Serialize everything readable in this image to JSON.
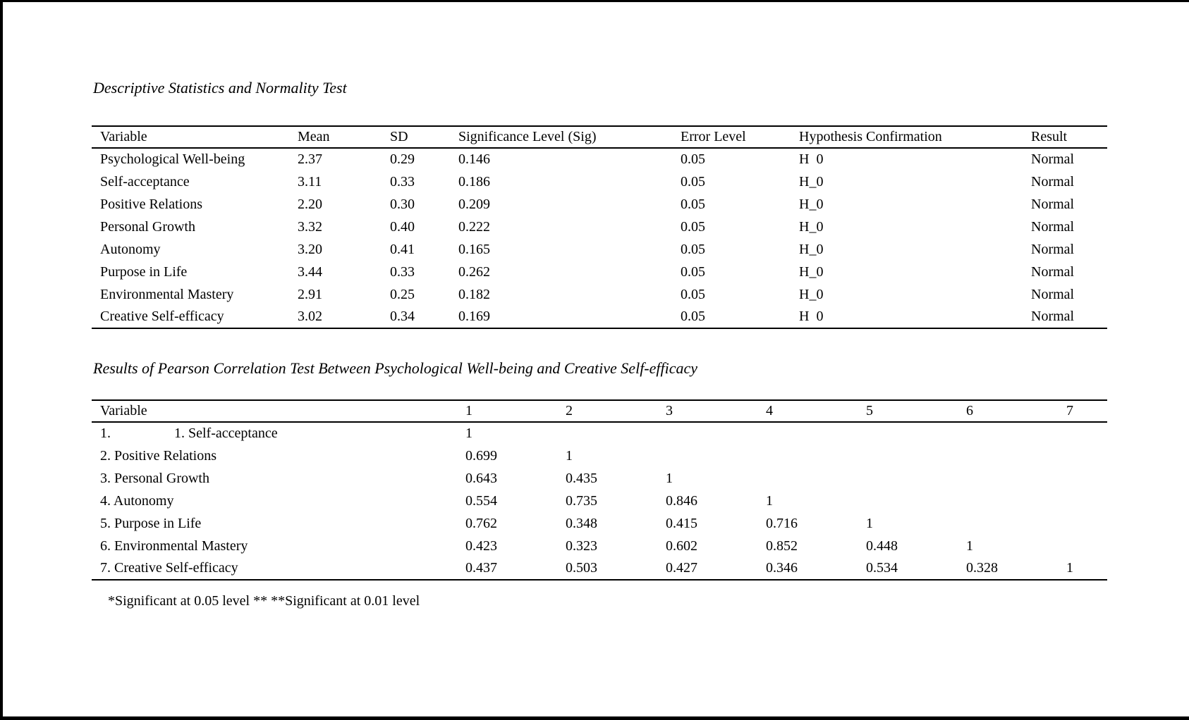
{
  "page": {
    "background": "#ffffff",
    "border_color": "#000000",
    "text_color": "#000000"
  },
  "section1": {
    "title": "Descriptive Statistics and Normality Test",
    "table": {
      "columns": [
        "Variable",
        "Mean",
        "SD",
        "Significance Level (Sig)",
        "Error Level",
        "Hypothesis Confirmation",
        "Result"
      ],
      "rows": [
        [
          "Psychological Well-being",
          "2.37",
          "0.29",
          "0.146",
          "0.05",
          "H  0",
          "Normal"
        ],
        [
          "Self-acceptance",
          "3.11",
          "0.33",
          "0.186",
          "0.05",
          "H_0",
          "Normal"
        ],
        [
          "Positive Relations",
          "2.20",
          "0.30",
          "0.209",
          "0.05",
          "H_0",
          "Normal"
        ],
        [
          "Personal Growth",
          "3.32",
          "0.40",
          "0.222",
          "0.05",
          "H_0",
          "Normal"
        ],
        [
          "Autonomy",
          "3.20",
          "0.41",
          "0.165",
          "0.05",
          "H_0",
          "Normal"
        ],
        [
          "Purpose in Life",
          "3.44",
          "0.33",
          "0.262",
          "0.05",
          "H_0",
          "Normal"
        ],
        [
          "Environmental Mastery",
          "2.91",
          "0.25",
          "0.182",
          "0.05",
          "H_0",
          "Normal"
        ],
        [
          "Creative Self-efficacy",
          "3.02",
          "0.34",
          "0.169",
          "0.05",
          "H  0",
          "Normal"
        ]
      ]
    }
  },
  "section2": {
    "title": "Results of Pearson Correlation Test Between Psychological Well-being and Creative Self-efficacy",
    "table": {
      "columns": [
        "Variable",
        "1",
        "2",
        "3",
        "4",
        "5",
        "6",
        "7"
      ],
      "rows": [
        [
          "1.     1. Self-acceptance",
          "1",
          "",
          "",
          "",
          "",
          "",
          ""
        ],
        [
          "2. Positive Relations",
          "0.699",
          "1",
          "",
          "",
          "",
          "",
          ""
        ],
        [
          "3. Personal Growth",
          "0.643",
          "0.435",
          "1",
          "",
          "",
          "",
          ""
        ],
        [
          "4. Autonomy",
          "0.554",
          "0.735",
          "0.846",
          "1",
          "",
          "",
          ""
        ],
        [
          "5. Purpose in Life",
          "0.762",
          "0.348",
          "0.415",
          "0.716",
          "1",
          "",
          ""
        ],
        [
          "6. Environmental Mastery",
          "0.423",
          "0.323",
          "0.602",
          "0.852",
          "0.448",
          "1",
          ""
        ],
        [
          "7. Creative Self-efficacy",
          "0.437",
          "0.503",
          "0.427",
          "0.346",
          "0.534",
          "0.328",
          "1"
        ]
      ]
    },
    "footnote": "*Significant at 0.05 level ** **Significant at 0.01 level"
  }
}
